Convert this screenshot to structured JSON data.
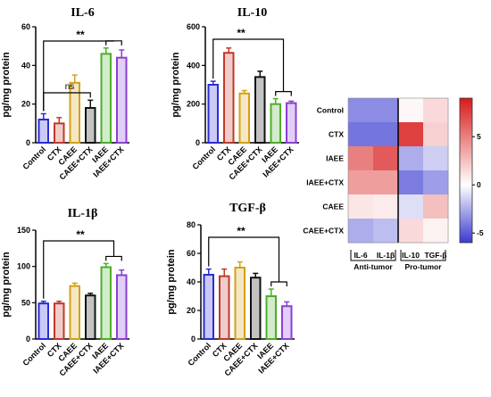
{
  "chart_data": [
    {
      "type": "bar",
      "title": "IL-6",
      "ylabel": "pg/mg protein",
      "categories": [
        "Control",
        "CTX",
        "CAEE",
        "CAEE+CTX",
        "IAEE",
        "IAEE+CTX"
      ],
      "values": [
        12,
        10,
        31,
        18,
        46,
        44
      ],
      "errors": [
        3,
        3,
        4,
        4,
        3,
        4
      ],
      "colors": [
        "#2b2bd8",
        "#c0392b",
        "#d4a017",
        "#111111",
        "#4caf2a",
        "#8b3fd6"
      ],
      "ylim": [
        0,
        60
      ],
      "yticks": [
        "0",
        "20",
        "40",
        "60"
      ],
      "annotations": [
        {
          "text": "**",
          "from": "Control",
          "to": "IAEE+CTX"
        },
        {
          "text": "ns",
          "from": "Control",
          "to": "CAEE+CTX"
        }
      ]
    },
    {
      "type": "bar",
      "title": "IL-10",
      "ylabel": "pg/mg protein",
      "categories": [
        "Control",
        "CTX",
        "CAEE",
        "CAEE+CTX",
        "IAEE",
        "IAEE+CTX"
      ],
      "values": [
        300,
        465,
        255,
        340,
        200,
        205
      ],
      "errors": [
        18,
        25,
        15,
        30,
        28,
        10
      ],
      "colors": [
        "#2b2bd8",
        "#c0392b",
        "#d4a017",
        "#111111",
        "#4caf2a",
        "#8b3fd6"
      ],
      "ylim": [
        0,
        600
      ],
      "yticks": [
        "0",
        "200",
        "400",
        "600"
      ],
      "annotations": [
        {
          "text": "**",
          "from": "Control",
          "to": "IAEE+CTX"
        }
      ]
    },
    {
      "type": "bar",
      "title": "IL-1β",
      "ylabel": "pg/mg protein",
      "categories": [
        "Control",
        "CTX",
        "CAEE",
        "CAEE+CTX",
        "IAEE",
        "IAEE+CTX"
      ],
      "values": [
        49,
        49,
        73,
        60,
        99,
        88
      ],
      "errors": [
        3,
        3,
        4,
        3,
        5,
        7
      ],
      "colors": [
        "#2b2bd8",
        "#c0392b",
        "#d4a017",
        "#111111",
        "#4caf2a",
        "#8b3fd6"
      ],
      "ylim": [
        0,
        150
      ],
      "yticks": [
        "0",
        "50",
        "100",
        "150"
      ],
      "annotations": [
        {
          "text": "**",
          "from": "Control",
          "to": "IAEE+CTX"
        }
      ]
    },
    {
      "type": "bar",
      "title": "TGF-β",
      "ylabel": "pg/mg protein",
      "categories": [
        "Control",
        "CTX",
        "CAEE",
        "CAEE+CTX",
        "IAEE",
        "IAEE+CTX"
      ],
      "values": [
        45,
        44,
        50,
        43,
        30,
        23
      ],
      "errors": [
        4,
        5,
        4,
        3,
        5,
        3
      ],
      "colors": [
        "#2b2bd8",
        "#c0392b",
        "#d4a017",
        "#111111",
        "#4caf2a",
        "#8b3fd6"
      ],
      "ylim": [
        0,
        80
      ],
      "yticks": [
        "0",
        "20",
        "40",
        "60",
        "80"
      ],
      "annotations": [
        {
          "text": "**",
          "from": "Control",
          "to": "IAEE+CTX"
        }
      ]
    },
    {
      "type": "heatmap",
      "rows": [
        "Control",
        "CTX",
        "IAEE",
        "IAEE+CTX",
        "CAEE",
        "CAEE+CTX"
      ],
      "columns": [
        "IL-6",
        "IL-1β",
        "IL-10",
        "TGF-β"
      ],
      "values": [
        [
          -3.5,
          -3.5,
          0.3,
          1.5
        ],
        [
          -4.2,
          -4.2,
          7.5,
          1.8
        ],
        [
          5.0,
          6.5,
          -2.5,
          -1.5
        ],
        [
          3.8,
          3.8,
          -4.0,
          -3.0
        ],
        [
          1.0,
          0.8,
          -1.0,
          2.5
        ],
        [
          -2.5,
          -2.0,
          1.5,
          0.5
        ]
      ],
      "scale": {
        "min": -6,
        "max": 9,
        "ticks": [
          "5",
          "0",
          "-5"
        ],
        "low_color": "#3a3ad0",
        "mid_color": "#ffffff",
        "high_color": "#d81a1a"
      },
      "groups": [
        {
          "label": "Anti-tumor",
          "columns": [
            "IL-6",
            "IL-1β"
          ]
        },
        {
          "label": "Pro-tumor",
          "columns": [
            "IL-10",
            "TGF-β"
          ]
        }
      ]
    }
  ]
}
